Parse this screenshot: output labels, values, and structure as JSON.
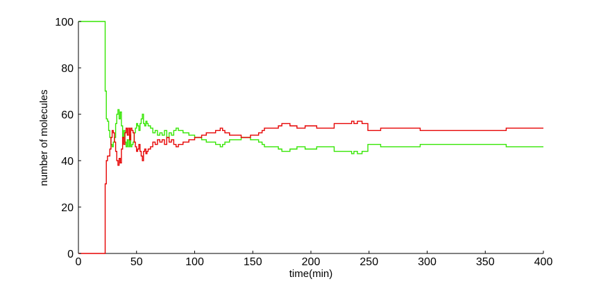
{
  "chart_data": {
    "type": "line",
    "title": "",
    "xlabel": "time(min)",
    "ylabel": "number of molecules",
    "xlim": [
      0,
      400
    ],
    "ylim": [
      0,
      100
    ],
    "x_ticks": [
      0,
      50,
      100,
      150,
      200,
      250,
      300,
      350,
      400
    ],
    "y_ticks": [
      0,
      20,
      40,
      60,
      80,
      100
    ],
    "grid": false,
    "legend": "none",
    "series": [
      {
        "color": "#33e600",
        "step": true,
        "points": [
          [
            0,
            100
          ],
          [
            22,
            100
          ],
          [
            23,
            70
          ],
          [
            24,
            58
          ],
          [
            25,
            57
          ],
          [
            26,
            53
          ],
          [
            27,
            50
          ],
          [
            28,
            47
          ],
          [
            29,
            46
          ],
          [
            30,
            48
          ],
          [
            31,
            50
          ],
          [
            32,
            56
          ],
          [
            33,
            60
          ],
          [
            34,
            62
          ],
          [
            35,
            58
          ],
          [
            36,
            61
          ],
          [
            37,
            55
          ],
          [
            38,
            50
          ],
          [
            39,
            53
          ],
          [
            40,
            48
          ],
          [
            41,
            46
          ],
          [
            42,
            49
          ],
          [
            43,
            46
          ],
          [
            44,
            51
          ],
          [
            45,
            46
          ],
          [
            46,
            47
          ],
          [
            47,
            48
          ],
          [
            48,
            52
          ],
          [
            49,
            54
          ],
          [
            50,
            56
          ],
          [
            51,
            55
          ],
          [
            52,
            53
          ],
          [
            53,
            56
          ],
          [
            54,
            58
          ],
          [
            55,
            60
          ],
          [
            56,
            56
          ],
          [
            57,
            55
          ],
          [
            58,
            57
          ],
          [
            59,
            56
          ],
          [
            60,
            55
          ],
          [
            62,
            54
          ],
          [
            64,
            52
          ],
          [
            66,
            53
          ],
          [
            68,
            51
          ],
          [
            70,
            52
          ],
          [
            72,
            51
          ],
          [
            74,
            53
          ],
          [
            76,
            50
          ],
          [
            78,
            52
          ],
          [
            80,
            51
          ],
          [
            82,
            53
          ],
          [
            84,
            54
          ],
          [
            86,
            53
          ],
          [
            88,
            53
          ],
          [
            90,
            52
          ],
          [
            92,
            52
          ],
          [
            95,
            51
          ],
          [
            100,
            50
          ],
          [
            104,
            50
          ],
          [
            106,
            49
          ],
          [
            110,
            48
          ],
          [
            116,
            48
          ],
          [
            118,
            47
          ],
          [
            122,
            46
          ],
          [
            124,
            47
          ],
          [
            126,
            48
          ],
          [
            130,
            49
          ],
          [
            135,
            49
          ],
          [
            140,
            50
          ],
          [
            144,
            50
          ],
          [
            148,
            49
          ],
          [
            152,
            49
          ],
          [
            155,
            48
          ],
          [
            158,
            47
          ],
          [
            160,
            46
          ],
          [
            165,
            46
          ],
          [
            170,
            46
          ],
          [
            172,
            45
          ],
          [
            175,
            44
          ],
          [
            180,
            44
          ],
          [
            182,
            45
          ],
          [
            188,
            46
          ],
          [
            195,
            45
          ],
          [
            200,
            45
          ],
          [
            205,
            46
          ],
          [
            215,
            46
          ],
          [
            220,
            44
          ],
          [
            230,
            44
          ],
          [
            235,
            43
          ],
          [
            237,
            44
          ],
          [
            240,
            43
          ],
          [
            243,
            43
          ],
          [
            244,
            44
          ],
          [
            247,
            44
          ],
          [
            249,
            47
          ],
          [
            260,
            46
          ],
          [
            280,
            46
          ],
          [
            290,
            46
          ],
          [
            294,
            47
          ],
          [
            320,
            47
          ],
          [
            350,
            47
          ],
          [
            366,
            47
          ],
          [
            368,
            46
          ],
          [
            380,
            46
          ],
          [
            400,
            46
          ]
        ]
      },
      {
        "color": "#e60000",
        "step": true,
        "points": [
          [
            0,
            0
          ],
          [
            22,
            0
          ],
          [
            23,
            30
          ],
          [
            24,
            40
          ],
          [
            25,
            42
          ],
          [
            26,
            42
          ],
          [
            27,
            45
          ],
          [
            28,
            50
          ],
          [
            29,
            53
          ],
          [
            30,
            52
          ],
          [
            31,
            48
          ],
          [
            32,
            44
          ],
          [
            33,
            40
          ],
          [
            34,
            38
          ],
          [
            35,
            41
          ],
          [
            36,
            39
          ],
          [
            37,
            45
          ],
          [
            38,
            50
          ],
          [
            39,
            47
          ],
          [
            40,
            52
          ],
          [
            41,
            54
          ],
          [
            42,
            51
          ],
          [
            43,
            54
          ],
          [
            44,
            49
          ],
          [
            45,
            54
          ],
          [
            46,
            53
          ],
          [
            47,
            52
          ],
          [
            48,
            48
          ],
          [
            49,
            46
          ],
          [
            50,
            44
          ],
          [
            51,
            45
          ],
          [
            52,
            47
          ],
          [
            53,
            44
          ],
          [
            54,
            42
          ],
          [
            55,
            40
          ],
          [
            56,
            44
          ],
          [
            57,
            45
          ],
          [
            58,
            43
          ],
          [
            59,
            44
          ],
          [
            60,
            45
          ],
          [
            62,
            46
          ],
          [
            64,
            48
          ],
          [
            66,
            47
          ],
          [
            68,
            49
          ],
          [
            70,
            48
          ],
          [
            72,
            49
          ],
          [
            74,
            47
          ],
          [
            76,
            50
          ],
          [
            78,
            48
          ],
          [
            80,
            49
          ],
          [
            82,
            47
          ],
          [
            84,
            46
          ],
          [
            86,
            47
          ],
          [
            88,
            47
          ],
          [
            90,
            48
          ],
          [
            92,
            48
          ],
          [
            95,
            49
          ],
          [
            100,
            50
          ],
          [
            104,
            50
          ],
          [
            106,
            51
          ],
          [
            110,
            52
          ],
          [
            116,
            52
          ],
          [
            118,
            53
          ],
          [
            122,
            54
          ],
          [
            124,
            53
          ],
          [
            126,
            52
          ],
          [
            130,
            51
          ],
          [
            135,
            51
          ],
          [
            140,
            50
          ],
          [
            144,
            50
          ],
          [
            148,
            51
          ],
          [
            152,
            51
          ],
          [
            155,
            52
          ],
          [
            158,
            53
          ],
          [
            160,
            54
          ],
          [
            165,
            54
          ],
          [
            170,
            54
          ],
          [
            172,
            55
          ],
          [
            175,
            56
          ],
          [
            180,
            56
          ],
          [
            182,
            55
          ],
          [
            188,
            54
          ],
          [
            195,
            55
          ],
          [
            200,
            55
          ],
          [
            205,
            54
          ],
          [
            215,
            54
          ],
          [
            220,
            56
          ],
          [
            230,
            56
          ],
          [
            235,
            57
          ],
          [
            237,
            56
          ],
          [
            240,
            57
          ],
          [
            243,
            57
          ],
          [
            244,
            56
          ],
          [
            247,
            56
          ],
          [
            249,
            53
          ],
          [
            260,
            54
          ],
          [
            280,
            54
          ],
          [
            290,
            54
          ],
          [
            294,
            53
          ],
          [
            320,
            53
          ],
          [
            350,
            53
          ],
          [
            366,
            53
          ],
          [
            368,
            54
          ],
          [
            380,
            54
          ],
          [
            400,
            54
          ]
        ]
      }
    ]
  }
}
